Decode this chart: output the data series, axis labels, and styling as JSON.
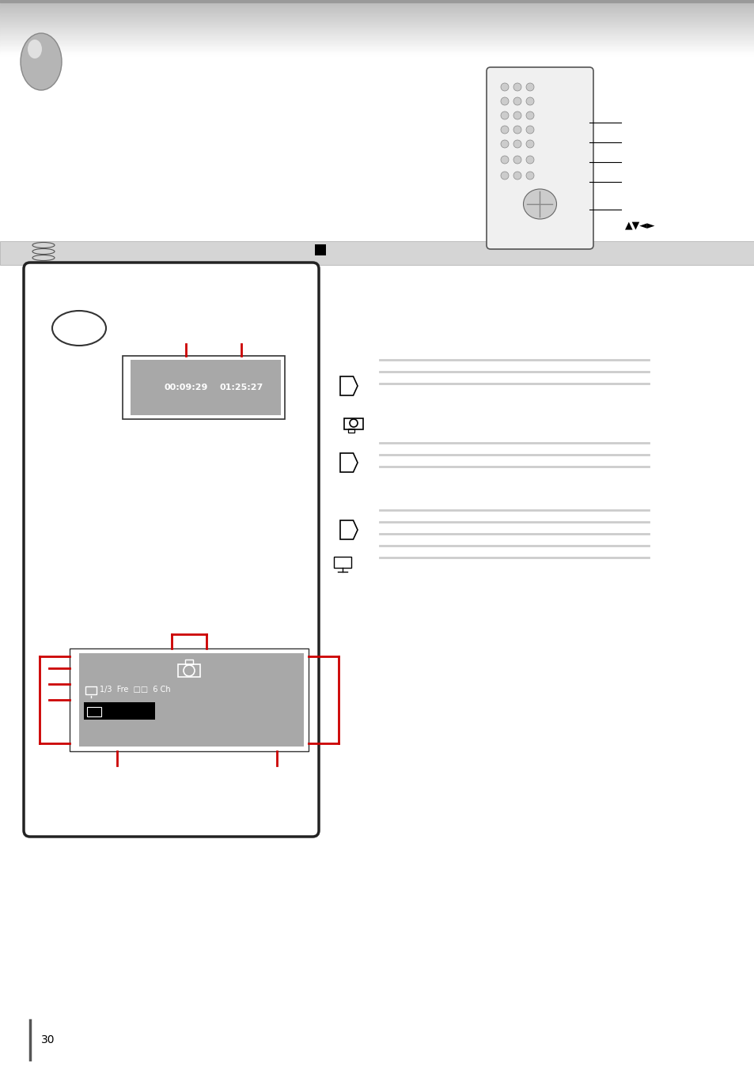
{
  "bg_color": "#ffffff",
  "page_num": "30",
  "header_color_top": "#bbbbbb",
  "header_color_bottom": "#ffffff",
  "ball_gray": "#b0b0b0",
  "panel_edge": "#222222",
  "screen_gray": "#a8a8a8",
  "red": "#cc0000",
  "time1": "00:09:29",
  "time2": "01:25:27",
  "osd_line1": "□ 1/3  Fre  □□  6 Ch",
  "remote_buttons_color": "#dddddd",
  "annotation_arrow_color": "#000000",
  "bar_stripe_color": "#d0d0d0"
}
